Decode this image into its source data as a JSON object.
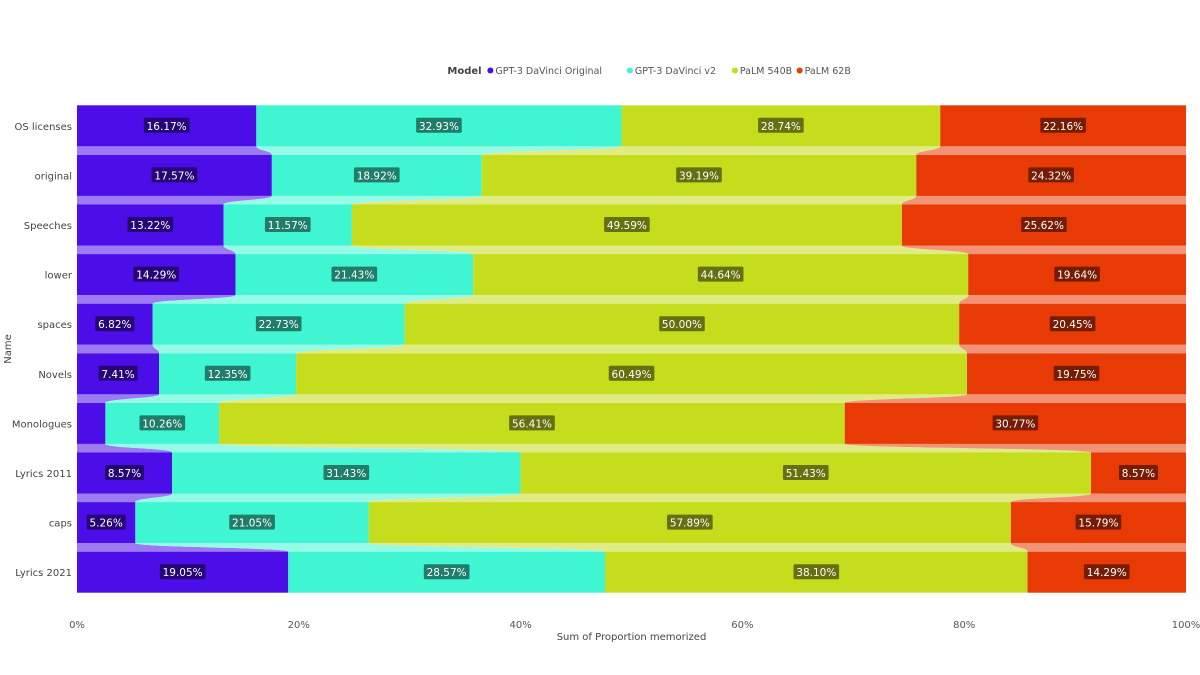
{
  "chart_data": {
    "type": "bar",
    "orientation": "horizontal",
    "stacked": "percent",
    "legend": {
      "title": "Model",
      "placement": "top-center"
    },
    "categories": [
      "OS licenses",
      "original",
      "Speeches",
      "lower",
      "spaces",
      "Novels",
      "Monologues",
      "Lyrics 2011",
      "caps",
      "Lyrics 2021"
    ],
    "series": [
      {
        "name": "GPT-3 DaVinci Original",
        "color": "#4b0de8",
        "values": [
          16.17,
          17.57,
          13.22,
          14.29,
          6.82,
          7.41,
          2.56,
          8.57,
          5.26,
          19.05
        ],
        "labels": [
          "16.17%",
          "17.57%",
          "13.22%",
          "14.29%",
          "6.82%",
          "7.41%",
          "",
          "8.57%",
          "5.26%",
          "19.05%"
        ]
      },
      {
        "name": "GPT-3 DaVinci v2",
        "color": "#3ff5d2",
        "values": [
          32.93,
          18.92,
          11.57,
          21.43,
          22.73,
          12.35,
          10.26,
          31.43,
          21.05,
          28.57
        ],
        "labels": [
          "32.93%",
          "18.92%",
          "11.57%",
          "21.43%",
          "22.73%",
          "12.35%",
          "10.26%",
          "31.43%",
          "21.05%",
          "28.57%"
        ]
      },
      {
        "name": "PaLM 540B",
        "color": "#c5dd1d",
        "values": [
          28.74,
          39.19,
          49.59,
          44.64,
          50.0,
          60.49,
          56.41,
          51.43,
          57.89,
          38.1
        ],
        "labels": [
          "28.74%",
          "39.19%",
          "49.59%",
          "44.64%",
          "50.00%",
          "60.49%",
          "56.41%",
          "51.43%",
          "57.89%",
          "38.10%"
        ]
      },
      {
        "name": "PaLM 62B",
        "color": "#e83a05",
        "values": [
          22.16,
          24.32,
          25.62,
          19.64,
          20.45,
          19.75,
          30.77,
          8.57,
          15.79,
          14.29
        ],
        "labels": [
          "22.16%",
          "24.32%",
          "25.62%",
          "19.64%",
          "20.45%",
          "19.75%",
          "30.77%",
          "8.57%",
          "15.79%",
          "14.29%"
        ]
      }
    ],
    "xlabel": "Sum of Proportion memorized",
    "ylabel": "Name",
    "xlim": [
      0,
      100
    ],
    "xticks": [
      "0%",
      "20%",
      "40%",
      "60%",
      "80%",
      "100%"
    ],
    "grid": false
  }
}
